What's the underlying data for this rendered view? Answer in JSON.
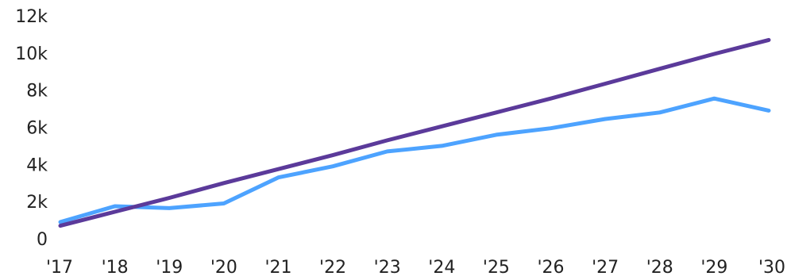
{
  "chart_data": {
    "type": "line",
    "title": "",
    "xlabel": "",
    "ylabel": "",
    "categories": [
      "'17",
      "'18",
      "'19",
      "'20",
      "'21",
      "'22",
      "'23",
      "'24",
      "'25",
      "'26",
      "'27",
      "'28",
      "'29",
      "'30"
    ],
    "ylim": [
      0,
      12000
    ],
    "yticks": [
      0,
      2000,
      4000,
      6000,
      8000,
      10000,
      12000
    ],
    "ytick_labels": [
      "0",
      "2k",
      "4k",
      "6k",
      "8k",
      "10k",
      "12k"
    ],
    "grid": false,
    "legend": "none",
    "series": [
      {
        "color": "#4da3ff",
        "values": [
          900,
          1750,
          1650,
          1900,
          3300,
          3900,
          4700,
          5000,
          5600,
          5950,
          6450,
          6800,
          7550,
          6900
        ]
      },
      {
        "color": "#5b3a9a",
        "values": [
          700,
          1450,
          2200,
          3000,
          3750,
          4500,
          5300,
          6050,
          6800,
          7550,
          8350,
          9150,
          9950,
          10700
        ]
      }
    ]
  }
}
